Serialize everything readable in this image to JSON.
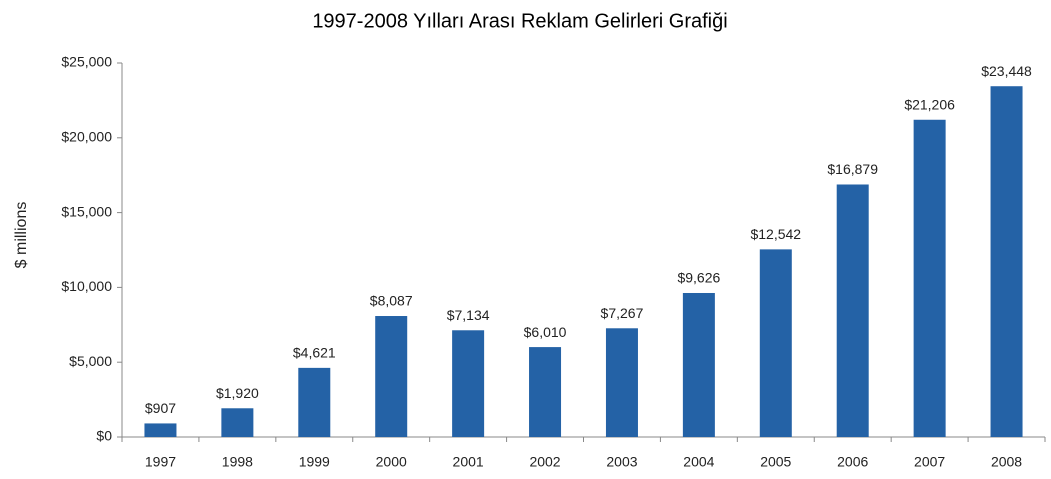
{
  "chart_data": {
    "type": "bar",
    "title": "1997-2008 Yılları Arası Reklam Gelirleri Grafiği",
    "ylabel": "$ millions",
    "categories": [
      "1997",
      "1998",
      "1999",
      "2000",
      "2001",
      "2002",
      "2003",
      "2004",
      "2005",
      "2006",
      "2007",
      "2008"
    ],
    "values": [
      907,
      1920,
      4621,
      8087,
      7134,
      6010,
      7267,
      9626,
      12542,
      16879,
      21206,
      23448
    ],
    "value_labels": [
      "$907",
      "$1,920",
      "$4,621",
      "$8,087",
      "$7,134",
      "$6,010",
      "$7,267",
      "$9,626",
      "$12,542",
      "$16,879",
      "$21,206",
      "$23,448"
    ],
    "color": "#2462a6",
    "ylim": [
      0,
      25000
    ],
    "yticks": [
      {
        "value": 0,
        "label": "$0"
      },
      {
        "value": 5000,
        "label": "$5,000"
      },
      {
        "value": 10000,
        "label": "$10,000"
      },
      {
        "value": 15000,
        "label": "$15,000"
      },
      {
        "value": 20000,
        "label": "$20,000"
      },
      {
        "value": 25000,
        "label": "$25,000"
      }
    ],
    "grid": false
  }
}
